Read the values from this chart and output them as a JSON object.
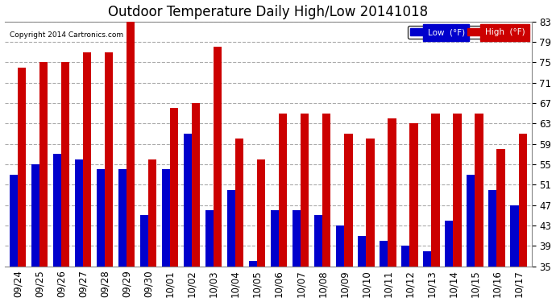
{
  "title": "Outdoor Temperature Daily High/Low 20141018",
  "copyright": "Copyright 2014 Cartronics.com",
  "legend_low": "Low  (°F)",
  "legend_high": "High  (°F)",
  "ylim": [
    35.0,
    83.0
  ],
  "yticks": [
    35.0,
    39.0,
    43.0,
    47.0,
    51.0,
    55.0,
    59.0,
    63.0,
    67.0,
    71.0,
    75.0,
    79.0,
    83.0
  ],
  "categories": [
    "09/24",
    "09/25",
    "09/26",
    "09/27",
    "09/28",
    "09/29",
    "09/30",
    "10/01",
    "10/02",
    "10/03",
    "10/04",
    "10/05",
    "10/06",
    "10/07",
    "10/08",
    "10/09",
    "10/10",
    "10/11",
    "10/12",
    "10/13",
    "10/14",
    "10/15",
    "10/16",
    "10/17"
  ],
  "high": [
    74.0,
    75.0,
    75.0,
    77.0,
    77.0,
    84.0,
    56.0,
    66.0,
    67.0,
    78.0,
    60.0,
    56.0,
    65.0,
    65.0,
    65.0,
    61.0,
    60.0,
    64.0,
    63.0,
    65.0,
    65.0,
    65.0,
    58.0,
    61.0
  ],
  "low": [
    53.0,
    55.0,
    57.0,
    56.0,
    54.0,
    54.0,
    45.0,
    54.0,
    61.0,
    46.0,
    50.0,
    36.0,
    46.0,
    46.0,
    45.0,
    43.0,
    41.0,
    40.0,
    39.0,
    38.0,
    44.0,
    53.0,
    50.0,
    47.0
  ],
  "low_color": "#0000cc",
  "high_color": "#cc0000",
  "bg_color": "#ffffff",
  "grid_color": "#aaaaaa",
  "title_fontsize": 12,
  "tick_fontsize": 8.5,
  "bar_width": 0.38,
  "ybaseline": 35.0
}
